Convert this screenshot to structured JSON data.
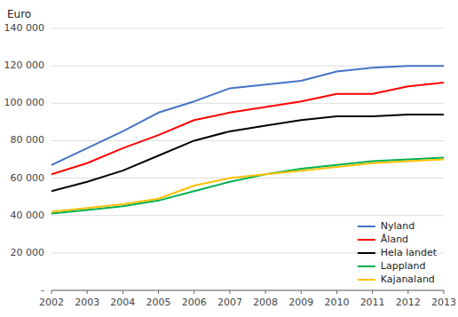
{
  "chart_data": {
    "type": "line",
    "ylabel": "Euro",
    "x": [
      2002,
      2003,
      2004,
      2005,
      2006,
      2007,
      2008,
      2009,
      2010,
      2011,
      2012,
      2013
    ],
    "xlim": [
      2002,
      2013
    ],
    "xticks": [
      2002,
      2003,
      2004,
      2005,
      2006,
      2007,
      2008,
      2009,
      2010,
      2011,
      2012,
      2013
    ],
    "ylim": [
      0,
      140000
    ],
    "yticks": [
      {
        "value": 0,
        "label": "-"
      },
      {
        "value": 20000,
        "label": "20 000"
      },
      {
        "value": 40000,
        "label": "40 000"
      },
      {
        "value": 60000,
        "label": "60 000"
      },
      {
        "value": 80000,
        "label": "80 000"
      },
      {
        "value": 100000,
        "label": "100 000"
      },
      {
        "value": 120000,
        "label": "120 000"
      },
      {
        "value": 140000,
        "label": "140 000"
      }
    ],
    "grid": true,
    "legend": "lower right",
    "series": [
      {
        "name": "Nyland",
        "color": "#4472C4",
        "values": [
          67000,
          76000,
          85000,
          95000,
          101000,
          108000,
          110000,
          112000,
          117000,
          119000,
          120000,
          120000
        ]
      },
      {
        "name": "Åland",
        "color": "#FF0000",
        "values": [
          62000,
          68000,
          76000,
          83000,
          91000,
          95000,
          98000,
          101000,
          105000,
          105000,
          109000,
          111000
        ]
      },
      {
        "name": "Hela landet",
        "color": "#000000",
        "values": [
          53000,
          58000,
          64000,
          72000,
          80000,
          85000,
          88000,
          91000,
          93000,
          93000,
          94000,
          94000
        ]
      },
      {
        "name": "Lappland",
        "color": "#00B050",
        "values": [
          41000,
          43000,
          45000,
          48000,
          53000,
          58000,
          62000,
          65000,
          67000,
          69000,
          70000,
          71000
        ]
      },
      {
        "name": "Kajanaland",
        "color": "#FFC000",
        "values": [
          42000,
          44000,
          46000,
          49000,
          56000,
          60000,
          62000,
          64000,
          66000,
          68000,
          69000,
          70000
        ]
      }
    ]
  }
}
